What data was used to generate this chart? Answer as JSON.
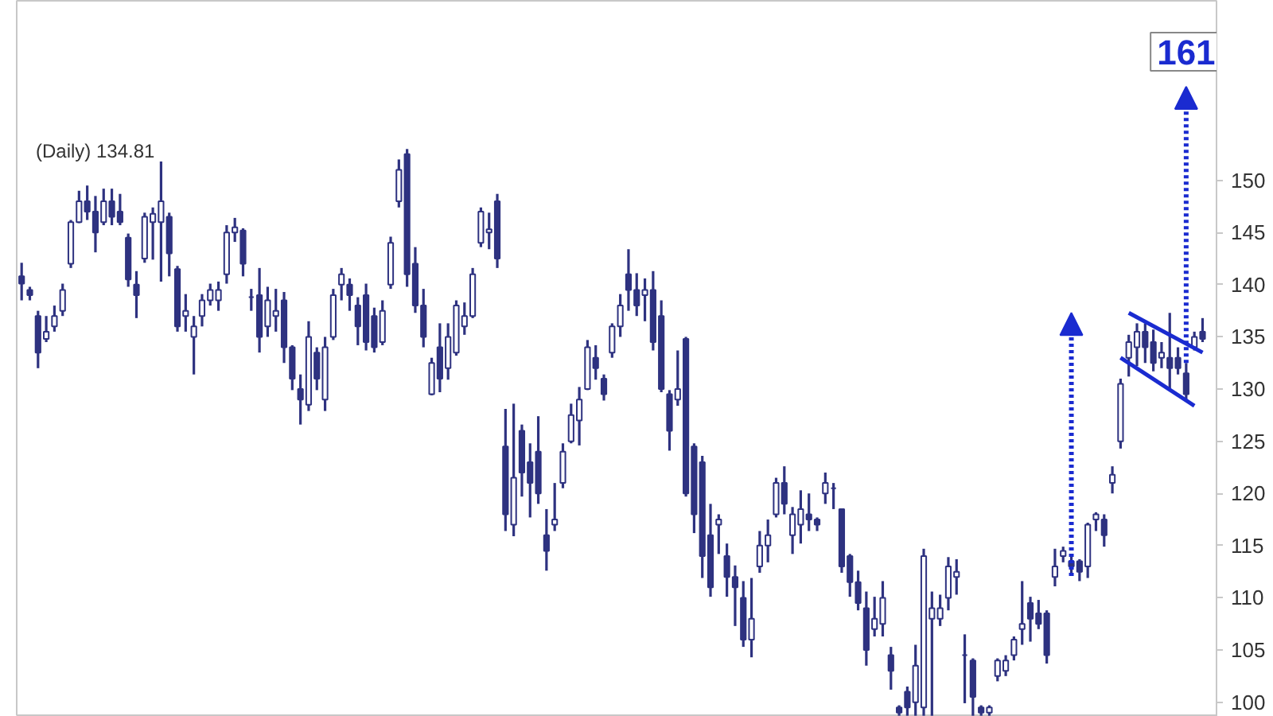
{
  "chart_data": {
    "type": "candlestick",
    "title": "(Daily) 134.81",
    "categories": [
      null,
      null,
      null,
      null,
      null,
      null,
      null,
      null,
      null,
      null,
      null,
      null,
      null,
      null,
      null,
      null,
      null,
      null,
      null,
      null,
      null,
      null,
      null,
      null,
      null,
      null,
      null,
      null,
      null,
      null,
      null,
      null,
      null,
      null,
      null,
      null,
      null,
      null,
      null,
      null,
      null,
      null,
      null,
      null,
      null,
      null,
      null,
      null,
      null,
      null,
      null,
      null,
      null,
      null,
      null,
      null,
      null,
      null,
      null,
      null,
      null,
      null,
      null,
      null,
      null,
      null,
      null,
      null,
      null,
      null,
      null,
      null,
      null,
      null,
      null,
      null,
      null,
      null,
      null,
      null,
      null,
      null,
      null,
      null,
      null,
      null,
      null,
      null,
      null,
      null,
      null,
      null,
      null,
      null,
      null,
      null,
      null,
      null,
      null,
      null,
      null,
      null,
      null,
      null,
      null,
      null,
      null,
      null,
      null,
      null,
      null,
      null,
      null,
      null,
      null,
      null,
      null,
      null,
      null,
      null,
      null,
      null,
      null,
      null,
      null,
      null,
      null,
      null,
      null,
      null,
      null,
      null,
      null,
      null,
      null,
      null,
      null,
      null,
      null,
      null,
      null,
      null,
      null,
      null,
      null
    ],
    "ohlc": [
      [
        140.8,
        142.1,
        138.5,
        140.1
      ],
      [
        139.5,
        139.8,
        138.5,
        139.0
      ],
      [
        137.0,
        137.5,
        132.0,
        133.5
      ],
      [
        134.8,
        137.0,
        134.5,
        135.5
      ],
      [
        136,
        138.0,
        135.5,
        137
      ],
      [
        137.5,
        140.1,
        137.0,
        139.5
      ],
      [
        142,
        146.2,
        141.6,
        146
      ],
      [
        146,
        149.0,
        145.9,
        148
      ],
      [
        148,
        149.5,
        146.2,
        147
      ],
      [
        147,
        148.5,
        143.1,
        145
      ],
      [
        146,
        149.2,
        145.7,
        148
      ],
      [
        148,
        149.2,
        145.7,
        146.5
      ],
      [
        147,
        148.7,
        145.7,
        146
      ],
      [
        144.5,
        144.9,
        139.8,
        140.5
      ],
      [
        140,
        141.3,
        136.8,
        139
      ],
      [
        142.5,
        146.9,
        142.1,
        146.5
      ],
      [
        146,
        147.4,
        142.4,
        146.8
      ],
      [
        146,
        151.8,
        140.3,
        148
      ],
      [
        146.5,
        146.9,
        140.8,
        143
      ],
      [
        141.5,
        141.8,
        135.5,
        136
      ],
      [
        137,
        139.1,
        135.5,
        137.5
      ],
      [
        135,
        137.0,
        131.4,
        136
      ],
      [
        137,
        139.1,
        136.0,
        138.5
      ],
      [
        138.5,
        140.1,
        138.0,
        139.5
      ],
      [
        138.5,
        140.3,
        137.5,
        139.5
      ],
      [
        141,
        145.7,
        140.1,
        145
      ],
      [
        145,
        146.4,
        144.1,
        145.5
      ],
      [
        145.2,
        145.4,
        140.8,
        142
      ],
      [
        138.8,
        139.6,
        137.5,
        138.8
      ],
      [
        139,
        141.6,
        133.5,
        135
      ],
      [
        136,
        139.8,
        135.0,
        138.5
      ],
      [
        137,
        139.6,
        135.5,
        137.5
      ],
      [
        138.5,
        139.3,
        132.5,
        134
      ],
      [
        134,
        134.2,
        129.9,
        131
      ],
      [
        130,
        131.4,
        126.6,
        129
      ],
      [
        128.5,
        136.5,
        127.9,
        135
      ],
      [
        133.5,
        134.0,
        129.9,
        131
      ],
      [
        129,
        135.0,
        127.9,
        134
      ],
      [
        135,
        139.6,
        134.7,
        139
      ],
      [
        140,
        141.6,
        138.5,
        141
      ],
      [
        140,
        140.6,
        137.5,
        139
      ],
      [
        138,
        138.8,
        134.2,
        136
      ],
      [
        139,
        140.1,
        133.7,
        134.5
      ],
      [
        137,
        137.8,
        133.5,
        134
      ],
      [
        134.5,
        138.5,
        134.2,
        137.5
      ],
      [
        140,
        144.6,
        139.6,
        144
      ],
      [
        148,
        152.0,
        147.4,
        151
      ],
      [
        152.5,
        153.0,
        139.8,
        141
      ],
      [
        142,
        143.6,
        137.3,
        138
      ],
      [
        138,
        139.6,
        134.0,
        135
      ],
      [
        129.5,
        133.0,
        129.4,
        132.5
      ],
      [
        134,
        136.3,
        129.7,
        131
      ],
      [
        132,
        136.3,
        130.9,
        135
      ],
      [
        133.5,
        138.5,
        133.2,
        138
      ],
      [
        136,
        138.3,
        135.2,
        137
      ],
      [
        137,
        141.6,
        136.8,
        141
      ],
      [
        144,
        147.4,
        143.6,
        147
      ],
      [
        145,
        146.9,
        143.4,
        145.3
      ],
      [
        148,
        148.7,
        141.6,
        142.5
      ],
      [
        124.5,
        128.1,
        116.4,
        118
      ],
      [
        117,
        128.6,
        115.9,
        121.5
      ],
      [
        126,
        126.6,
        119.7,
        122
      ],
      [
        123,
        124.8,
        117.7,
        121
      ],
      [
        124,
        127.4,
        119.0,
        120
      ],
      [
        116,
        118.5,
        112.6,
        114.5
      ],
      [
        117,
        121.0,
        116.4,
        117.5
      ],
      [
        121,
        124.8,
        120.5,
        124
      ],
      [
        125,
        128.6,
        124.8,
        127.5
      ],
      [
        127,
        130.2,
        124.6,
        129
      ],
      [
        130,
        134.7,
        129.9,
        134
      ],
      [
        133,
        134.2,
        130.9,
        132
      ],
      [
        131,
        131.4,
        128.9,
        129.5
      ],
      [
        133.5,
        136.3,
        133.0,
        136
      ],
      [
        136,
        139.1,
        135.0,
        138
      ],
      [
        141,
        143.4,
        137.5,
        139.5
      ],
      [
        139.5,
        141.1,
        137.0,
        138
      ],
      [
        139,
        140.6,
        136.5,
        139.5
      ],
      [
        139.5,
        141.3,
        133.7,
        134.5
      ],
      [
        137,
        138.5,
        129.7,
        130
      ],
      [
        129.5,
        129.9,
        124.1,
        126
      ],
      [
        129,
        133.7,
        128.4,
        130
      ],
      [
        134.8,
        135.0,
        119.7,
        120
      ],
      [
        124.5,
        124.8,
        116.2,
        118
      ],
      [
        123,
        123.6,
        111.9,
        114
      ],
      [
        116,
        119.0,
        110.1,
        111
      ],
      [
        117,
        118.0,
        114.2,
        117.5
      ],
      [
        114,
        115.2,
        110.1,
        112
      ],
      [
        112,
        113.1,
        107.3,
        111
      ],
      [
        110,
        111.6,
        105.3,
        106
      ],
      [
        106,
        111.9,
        104.3,
        108
      ],
      [
        113,
        116.4,
        112.4,
        115
      ],
      [
        115,
        117.5,
        113.4,
        116
      ],
      [
        118,
        121.5,
        117.7,
        121
      ],
      [
        121,
        122.6,
        118.0,
        119
      ],
      [
        116,
        118.7,
        114.2,
        118
      ],
      [
        117,
        120.3,
        115.2,
        118.5
      ],
      [
        118,
        120.0,
        116.4,
        117.5
      ],
      [
        117.5,
        117.7,
        116.4,
        117
      ],
      [
        120,
        122.0,
        119.0,
        121
      ],
      [
        120.5,
        121.0,
        118.5,
        120.5
      ],
      [
        118.5,
        118.5,
        112.4,
        113
      ],
      [
        114,
        114.2,
        110.1,
        111.5
      ],
      [
        111.5,
        112.6,
        108.8,
        109.5
      ],
      [
        109,
        110.6,
        103.5,
        105
      ],
      [
        107,
        110.1,
        106.3,
        108
      ],
      [
        107.5,
        111.6,
        106.3,
        110
      ],
      [
        104.5,
        105.3,
        101.2,
        103
      ],
      [
        99.5,
        99.7,
        98.7,
        99
      ],
      [
        101,
        101.5,
        98.7,
        99.5
      ],
      [
        100,
        105.5,
        98.7,
        103.5
      ],
      [
        99.5,
        114.7,
        98.7,
        114
      ],
      [
        108,
        110.6,
        98.7,
        109
      ],
      [
        108,
        110.3,
        107.3,
        109
      ],
      [
        110,
        113.9,
        108.8,
        113
      ],
      [
        112,
        113.7,
        110.3,
        112.5
      ],
      [
        104.5,
        106.5,
        99.9,
        104.5
      ],
      [
        104,
        104.2,
        98.7,
        100.5
      ],
      [
        99.5,
        99.7,
        98.7,
        99
      ],
      [
        99,
        99.7,
        98.7,
        99.5
      ],
      [
        102.5,
        104.2,
        102.0,
        104
      ],
      [
        103,
        104.5,
        102.5,
        104
      ],
      [
        104.5,
        106.3,
        104.0,
        106
      ],
      [
        107,
        111.6,
        105.5,
        107.5
      ],
      [
        109.5,
        110.1,
        105.8,
        108
      ],
      [
        108.5,
        109.8,
        107.0,
        107.5
      ],
      [
        108.5,
        108.8,
        103.7,
        104.5
      ],
      [
        112,
        114.7,
        111.1,
        113
      ],
      [
        114,
        114.9,
        113.4,
        114.5
      ],
      [
        113.5,
        114.2,
        112.1,
        113
      ],
      [
        113.5,
        113.7,
        111.6,
        112.5
      ],
      [
        113,
        117.2,
        111.9,
        117
      ],
      [
        117.5,
        118.2,
        116.4,
        118
      ],
      [
        117.5,
        118.0,
        114.9,
        116
      ],
      [
        121,
        122.6,
        120.0,
        121.8
      ],
      [
        125,
        131.0,
        124.3,
        130.5
      ],
      [
        133,
        135.2,
        131.2,
        134.5
      ],
      [
        134,
        136.3,
        132.2,
        135.5
      ],
      [
        135.5,
        136.3,
        132.5,
        134
      ],
      [
        134.5,
        135.7,
        131.7,
        132.5
      ],
      [
        133,
        134.5,
        132.0,
        133.5
      ],
      [
        133,
        137.3,
        129.9,
        132
      ],
      [
        133,
        134.0,
        131.4,
        132
      ],
      [
        131.5,
        132.5,
        128.9,
        129.5
      ],
      [
        134,
        135.5,
        133.7,
        135
      ],
      [
        135.5,
        136.8,
        134.5,
        134.81
      ]
    ],
    "color": "#2e3280",
    "series": [
      {
        "type": "line",
        "values": [
          null,
          null,
          null,
          null,
          null,
          null,
          null,
          null,
          null,
          null,
          null,
          null,
          null,
          null,
          null,
          null,
          null,
          null,
          null,
          null,
          null,
          null,
          null,
          null,
          null,
          null,
          null,
          null,
          null,
          null,
          null,
          null,
          null,
          null,
          null,
          null,
          null,
          null,
          null,
          null,
          null,
          null,
          null,
          null,
          null,
          null,
          null,
          null,
          null,
          null,
          null,
          null,
          null,
          null,
          null,
          null,
          null,
          null,
          null,
          null,
          null,
          null,
          null,
          null,
          null,
          null,
          null,
          null,
          null,
          null,
          null,
          null,
          null,
          null,
          null,
          null,
          null,
          null,
          null,
          null,
          null,
          null,
          null,
          null,
          null,
          null,
          null,
          null,
          null,
          null,
          null,
          null,
          null,
          null,
          null,
          null,
          null,
          null,
          null,
          null,
          null,
          null,
          null,
          null,
          null,
          null,
          null,
          null,
          null,
          null,
          null,
          null,
          null,
          null,
          null,
          null,
          null,
          null,
          null,
          null,
          null,
          null,
          null,
          null,
          null,
          null,
          null,
          null,
          null,
          null,
          null,
          null,
          null,
          null,
          null,
          137.3,
          null,
          null,
          null,
          null,
          null,
          null,
          null,
          null,
          133.5
        ],
        "color": "#1a2bd0",
        "line_style": "solid"
      },
      {
        "type": "line",
        "values": [
          null,
          null,
          null,
          null,
          null,
          null,
          null,
          null,
          null,
          null,
          null,
          null,
          null,
          null,
          null,
          null,
          null,
          null,
          null,
          null,
          null,
          null,
          null,
          null,
          null,
          null,
          null,
          null,
          null,
          null,
          null,
          null,
          null,
          null,
          null,
          null,
          null,
          null,
          null,
          null,
          null,
          null,
          null,
          null,
          null,
          null,
          null,
          null,
          null,
          null,
          null,
          null,
          null,
          null,
          null,
          null,
          null,
          null,
          null,
          null,
          null,
          null,
          null,
          null,
          null,
          null,
          null,
          null,
          null,
          null,
          null,
          null,
          null,
          null,
          null,
          null,
          null,
          null,
          null,
          null,
          null,
          null,
          null,
          null,
          null,
          null,
          null,
          null,
          null,
          null,
          null,
          null,
          null,
          null,
          null,
          null,
          null,
          null,
          null,
          null,
          null,
          null,
          null,
          null,
          null,
          null,
          null,
          null,
          null,
          null,
          null,
          null,
          null,
          null,
          null,
          null,
          null,
          null,
          null,
          null,
          null,
          null,
          null,
          null,
          null,
          null,
          null,
          null,
          null,
          null,
          null,
          null,
          null,
          null,
          133.0,
          null,
          null,
          null,
          null,
          null,
          null,
          null,
          null,
          128.4,
          null
        ],
        "color": "#1a2bd0",
        "line_style": "solid"
      }
    ],
    "annotations": [
      "161"
    ],
    "ylim": [
      98.6,
      167.2
    ],
    "yticks": [
      100,
      105,
      110,
      115,
      120,
      125,
      130,
      135,
      140,
      145,
      150
    ],
    "tick_labels": "y",
    "grid": false
  }
}
